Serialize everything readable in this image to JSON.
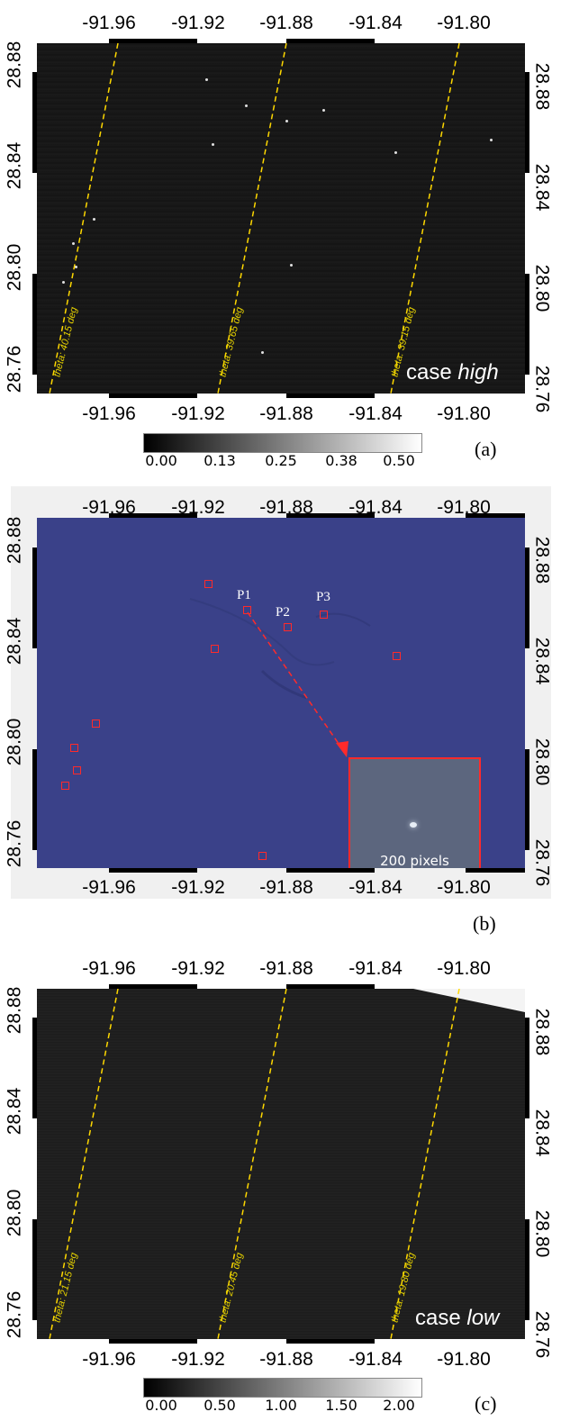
{
  "x_ticks": [
    "-91.96",
    "-91.92",
    "-91.88",
    "-91.84",
    "-91.80"
  ],
  "y_ticks": [
    "28.88",
    "28.84",
    "28.80",
    "28.76"
  ],
  "panels": [
    {
      "label": "(a)",
      "case_word": "case",
      "case_name": "high",
      "theta_labels": [
        "theta: 40.15 deg",
        "theta: 39.65 deg",
        "theta: 39.15 deg"
      ],
      "colorbar_ticks": [
        "0.00",
        "0.13",
        "0.25",
        "0.38",
        "0.50"
      ]
    },
    {
      "label": "(b)",
      "point_labels": [
        "P1",
        "P2",
        "P3"
      ],
      "inset_label": "200 pixels"
    },
    {
      "label": "(c)",
      "case_word": "case",
      "case_name": "low",
      "theta_labels": [
        "theta: 21.15 deg",
        "theta: 20.45 deg",
        "theta: 19.80 deg"
      ],
      "colorbar_ticks": [
        "0.00",
        "0.50",
        "1.00",
        "1.50",
        "2.00"
      ]
    }
  ],
  "colors": {
    "theta_line": "#ffd800",
    "marker": "#ff2a2a",
    "sea_blue": "#3a4189"
  }
}
